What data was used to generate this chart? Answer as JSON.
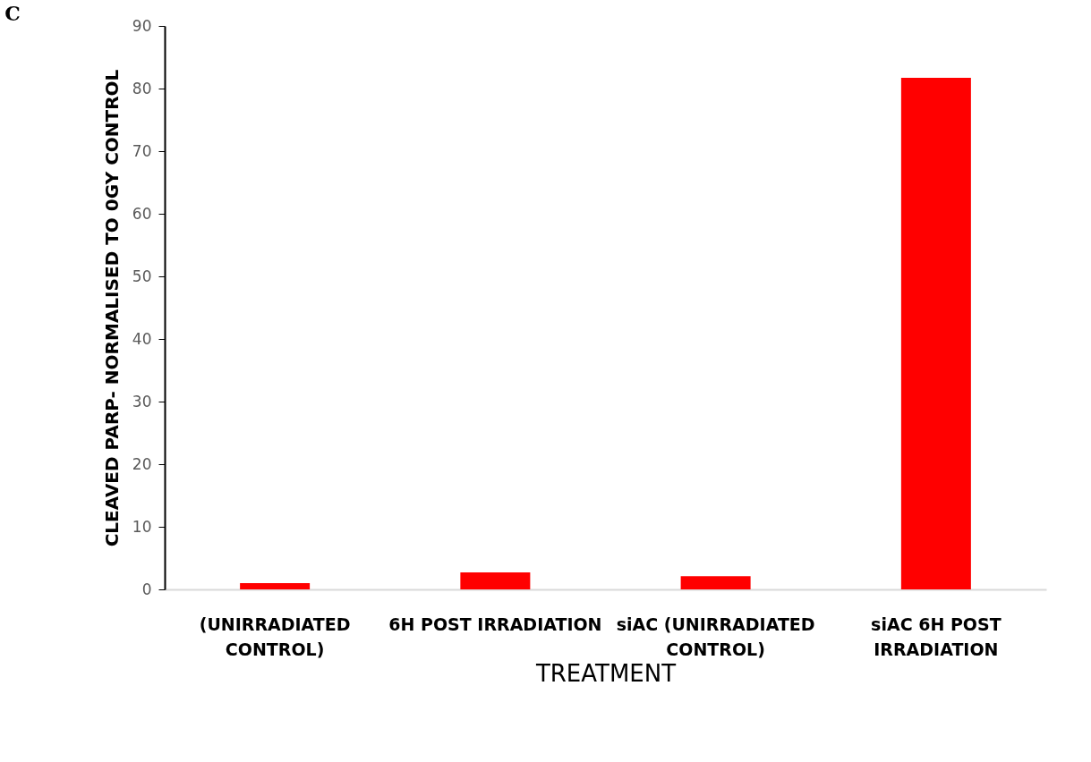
{
  "chart_data": {
    "type": "bar",
    "title": "C",
    "xlabel": "TREATMENT",
    "ylabel": "CLEAVED PARP-  NORMALISED TO 0GY CONTROL",
    "categories": [
      "(UNIRRADIATED CONTROL)",
      "6H POST IRRADIATION",
      "siAC (UNIRRADIATED CONTROL)",
      "siAC 6H POST IRRADIATION"
    ],
    "values": [
      1.0,
      2.7,
      2.1,
      81.7
    ],
    "color": "#ff0000",
    "ylim": [
      0,
      90
    ],
    "yticks": [
      0,
      10,
      20,
      30,
      40,
      50,
      60,
      70,
      80,
      90
    ],
    "grid": false
  }
}
